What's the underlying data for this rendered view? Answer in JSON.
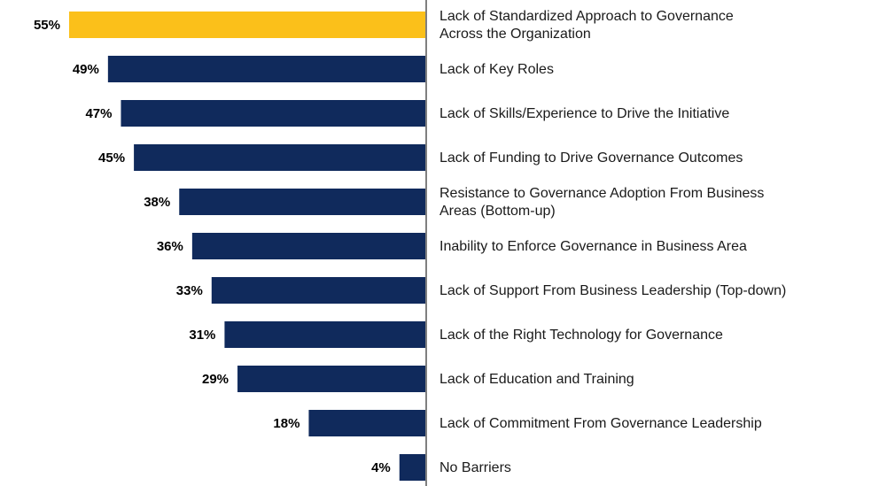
{
  "chart_data": {
    "type": "bar",
    "orientation": "horizontal",
    "title": "",
    "xlabel": "",
    "ylabel": "",
    "xlim": [
      0,
      55
    ],
    "grid": false,
    "legend": "none",
    "highlight_color": "#FBC01A",
    "bar_color": "#102A5C",
    "axis_color": "#7F7F7F",
    "categories": [
      [
        "Lack of Standardized Approach to Governance",
        "Across the Organization"
      ],
      [
        "Lack of Key Roles"
      ],
      [
        "Lack of Skills/Experience to Drive the Initiative"
      ],
      [
        "Lack of Funding to Drive Governance Outcomes"
      ],
      [
        "Resistance to Governance Adoption From Business",
        "Areas (Bottom-up)"
      ],
      [
        "Inability to Enforce Governance in Business Area"
      ],
      [
        "Lack of Support From Business Leadership (Top-down)"
      ],
      [
        "Lack of the Right Technology for Governance"
      ],
      [
        "Lack of Education and Training"
      ],
      [
        "Lack of Commitment From Governance Leadership"
      ],
      [
        "No Barriers"
      ]
    ],
    "values": [
      55,
      49,
      47,
      45,
      38,
      36,
      33,
      31,
      29,
      18,
      4
    ],
    "value_labels": [
      "55%",
      "49%",
      "47%",
      "45%",
      "38%",
      "36%",
      "33%",
      "31%",
      "29%",
      "18%",
      "4%"
    ],
    "highlight_index": 0
  }
}
